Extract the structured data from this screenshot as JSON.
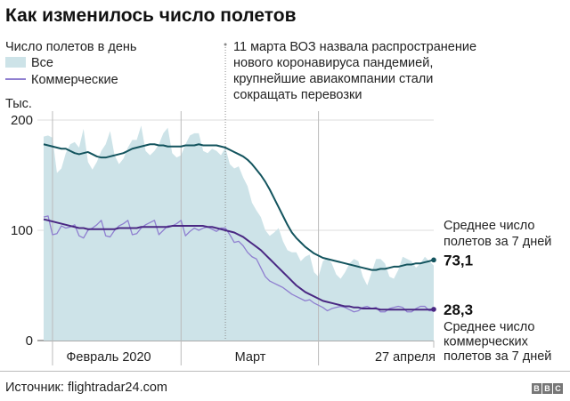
{
  "chart_data": {
    "type": "area+line",
    "title": "Как изменилось число полетов",
    "ylabel": "Тыс.",
    "ylim": [
      0,
      200
    ],
    "yticks": [
      0,
      100,
      200
    ],
    "grid": true,
    "x_start": "2020-01-30",
    "x_end": "2020-04-27",
    "xtick_labels": [
      {
        "day": 2,
        "label": "Февраль 2020"
      },
      {
        "day": 31,
        "label": "Март"
      },
      {
        "day": 88,
        "label": "27 апреля"
      }
    ],
    "legend": {
      "heading": "Число полетов в день",
      "all": "Все",
      "commercial": "Коммерческие"
    },
    "annotation": {
      "day": 41,
      "lines": [
        "11 марта ВОЗ назвала распространение",
        "нового коронавируса пандемией,",
        "крупнейшие авиакомпании стали",
        "сокращать перевозки"
      ]
    },
    "series": [
      {
        "name": "Все (в день)",
        "type": "area",
        "color": "#cde3e8",
        "values": [
          185,
          186,
          184,
          152,
          156,
          170,
          178,
          180,
          175,
          192,
          162,
          155,
          162,
          172,
          178,
          190,
          168,
          160,
          165,
          175,
          182,
          182,
          195,
          172,
          168,
          172,
          178,
          188,
          193,
          170,
          166,
          168,
          178,
          186,
          188,
          188,
          172,
          170,
          174,
          172,
          168,
          175,
          160,
          156,
          158,
          148,
          140,
          125,
          118,
          112,
          100,
          95,
          98,
          102,
          90,
          82,
          80,
          80,
          72,
          76,
          78,
          62,
          58,
          72,
          75,
          70,
          60,
          56,
          62,
          70,
          74,
          72,
          58,
          50,
          62,
          74,
          74,
          70,
          58,
          56,
          64,
          76,
          74,
          72,
          66,
          70,
          76,
          72,
          68
        ]
      },
      {
        "name": "Коммерческие (в день)",
        "type": "line",
        "color": "#8f7fd0",
        "values": [
          112,
          113,
          96,
          97,
          104,
          102,
          103,
          105,
          95,
          93,
          100,
          102,
          105,
          109,
          95,
          94,
          100,
          104,
          106,
          109,
          96,
          97,
          102,
          105,
          107,
          109,
          96,
          100,
          104,
          104,
          106,
          109,
          95,
          99,
          102,
          100,
          102,
          103,
          101,
          99,
          102,
          102,
          96,
          89,
          90,
          86,
          80,
          76,
          74,
          66,
          58,
          54,
          52,
          50,
          48,
          45,
          42,
          40,
          38,
          36,
          37,
          34,
          32,
          30,
          27,
          29,
          30,
          31,
          30,
          28,
          26,
          27,
          30,
          31,
          29,
          30,
          26,
          26,
          29,
          30,
          31,
          30,
          26,
          26,
          29,
          31,
          31,
          27,
          27
        ]
      },
      {
        "name": "Среднее число полетов за 7 дней",
        "type": "line",
        "color": "#13545e",
        "values": [
          178,
          177,
          176,
          175,
          174,
          174,
          172,
          170,
          169,
          170,
          171,
          169,
          167,
          166,
          166,
          167,
          168,
          169,
          170,
          172,
          174,
          175,
          176,
          177,
          178,
          178,
          177,
          177,
          176,
          176,
          176,
          176,
          177,
          177,
          177,
          178,
          177,
          177,
          177,
          177,
          176,
          175,
          173,
          171,
          169,
          167,
          164,
          160,
          155,
          150,
          144,
          137,
          129,
          121,
          113,
          105,
          98,
          93,
          89,
          85,
          82,
          79,
          77,
          75,
          74,
          73,
          72,
          71,
          70,
          69,
          68,
          67,
          66,
          65,
          64,
          64,
          65,
          65,
          66,
          67,
          67,
          68,
          69,
          69,
          70,
          70,
          71,
          72,
          73.1
        ],
        "end_label": "73,1",
        "label_lines": [
          "Среднее число",
          "полетов за 7 дней"
        ]
      },
      {
        "name": "Среднее число коммерческих полетов за 7 дней",
        "type": "line",
        "color": "#4a2883",
        "values": [
          110,
          109,
          108,
          107,
          106,
          105,
          104,
          103,
          102,
          102,
          101,
          101,
          101,
          101,
          101,
          101,
          101,
          102,
          102,
          102,
          102,
          102,
          103,
          103,
          103,
          103,
          103,
          103,
          103,
          104,
          104,
          104,
          104,
          104,
          104,
          104,
          104,
          103,
          103,
          102,
          101,
          100,
          99,
          98,
          96,
          94,
          91,
          88,
          85,
          82,
          78,
          74,
          70,
          66,
          62,
          58,
          54,
          50,
          47,
          44,
          42,
          40,
          38,
          36,
          35,
          34,
          33,
          32,
          31,
          31,
          30,
          30,
          29,
          29,
          29,
          29,
          28,
          28,
          28,
          28,
          28,
          28,
          28,
          28,
          28,
          28,
          28,
          28,
          28.3
        ],
        "end_label": "28,3",
        "label_lines": [
          "Среднее число",
          "коммерческих",
          "полетов за 7 дней"
        ]
      }
    ]
  },
  "footer": {
    "source": "Источник: flightradar24.com",
    "logo": [
      "B",
      "B",
      "C"
    ]
  }
}
